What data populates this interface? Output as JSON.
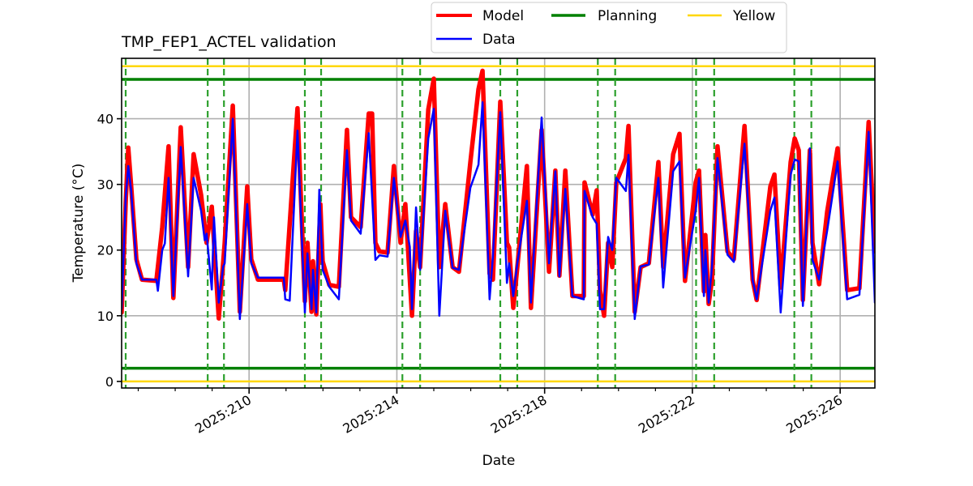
{
  "chart_data": {
    "type": "line",
    "title": "TMP_FEP1_ACTEL validation",
    "xlabel": "Date",
    "ylabel": "Temperature ($^\\circ$C)",
    "ylabel_display": "Temperature (°C)",
    "xlim": [
      206.55,
      226.94
    ],
    "ylim": [
      -1.0,
      49.2
    ],
    "grid": true,
    "legend_placement": "top-center (above plot)",
    "x_ticks": [
      {
        "value": 210,
        "label": "2025:210"
      },
      {
        "value": 214,
        "label": "2025:214"
      },
      {
        "value": 218,
        "label": "2025:218"
      },
      {
        "value": 222,
        "label": "2025:222"
      },
      {
        "value": 226,
        "label": "2025:226"
      }
    ],
    "x_minor_step": 1,
    "y_ticks": [
      {
        "value": 0,
        "label": "0"
      },
      {
        "value": 10,
        "label": "10"
      },
      {
        "value": 20,
        "label": "20"
      },
      {
        "value": 30,
        "label": "30"
      },
      {
        "value": 40,
        "label": "40"
      }
    ],
    "legend": [
      {
        "name": "Model",
        "color": "#ff0000"
      },
      {
        "name": "Data",
        "color": "#0000ff"
      },
      {
        "name": "Planning",
        "color": "#008000"
      },
      {
        "name": "Yellow",
        "color": "#ffd700"
      }
    ],
    "limits": {
      "planning": {
        "color": "#008000",
        "values": [
          46,
          2
        ]
      },
      "yellow": {
        "color": "#ffd700",
        "values": [
          48,
          0
        ]
      }
    },
    "event_lines": {
      "color": "#2ca02c",
      "style": "dashed",
      "x": [
        206.66,
        208.88,
        209.32,
        211.51,
        211.95,
        214.15,
        214.63,
        216.8,
        217.26,
        219.44,
        219.91,
        222.1,
        222.59,
        224.76,
        225.22
      ]
    },
    "series": [
      {
        "name": "Model",
        "color": "#ff0000",
        "points": [
          [
            206.55,
            10.5
          ],
          [
            206.66,
            27.2
          ],
          [
            206.73,
            35.6
          ],
          [
            206.81,
            29.7
          ],
          [
            206.95,
            18.6
          ],
          [
            207.1,
            15.5
          ],
          [
            207.49,
            15.3
          ],
          [
            207.65,
            23.5
          ],
          [
            207.82,
            35.8
          ],
          [
            207.95,
            12.7
          ],
          [
            208.15,
            38.7
          ],
          [
            208.35,
            17.4
          ],
          [
            208.5,
            34.6
          ],
          [
            208.7,
            28.4
          ],
          [
            208.85,
            21.1
          ],
          [
            208.99,
            26.6
          ],
          [
            209.18,
            9.6
          ],
          [
            209.34,
            21.1
          ],
          [
            209.56,
            42.0
          ],
          [
            209.75,
            10.6
          ],
          [
            209.95,
            29.7
          ],
          [
            210.06,
            18.6
          ],
          [
            210.24,
            15.5
          ],
          [
            210.94,
            15.5
          ],
          [
            210.98,
            13.9
          ],
          [
            211.31,
            41.6
          ],
          [
            211.51,
            12.2
          ],
          [
            211.58,
            21.1
          ],
          [
            211.69,
            10.6
          ],
          [
            211.73,
            18.3
          ],
          [
            211.82,
            10.2
          ],
          [
            211.93,
            27.0
          ],
          [
            211.99,
            18.3
          ],
          [
            212.17,
            14.7
          ],
          [
            212.43,
            14.4
          ],
          [
            212.65,
            38.3
          ],
          [
            212.76,
            25.0
          ],
          [
            213.02,
            23.5
          ],
          [
            213.24,
            40.8
          ],
          [
            213.33,
            40.8
          ],
          [
            213.42,
            21.1
          ],
          [
            213.53,
            19.8
          ],
          [
            213.75,
            19.6
          ],
          [
            213.92,
            32.8
          ],
          [
            214.1,
            21.1
          ],
          [
            214.23,
            27.0
          ],
          [
            214.41,
            10.0
          ],
          [
            214.52,
            22.9
          ],
          [
            214.63,
            17.4
          ],
          [
            214.85,
            41.4
          ],
          [
            215.0,
            46.1
          ],
          [
            215.15,
            17.4
          ],
          [
            215.31,
            27.0
          ],
          [
            215.51,
            17.4
          ],
          [
            215.68,
            16.7
          ],
          [
            215.99,
            33.4
          ],
          [
            216.21,
            44.5
          ],
          [
            216.32,
            47.3
          ],
          [
            216.51,
            16.4
          ],
          [
            216.6,
            15.5
          ],
          [
            216.8,
            42.6
          ],
          [
            216.98,
            21.1
          ],
          [
            217.04,
            20.4
          ],
          [
            217.15,
            11.2
          ],
          [
            217.26,
            17.4
          ],
          [
            217.52,
            32.8
          ],
          [
            217.63,
            11.2
          ],
          [
            217.92,
            38.3
          ],
          [
            218.12,
            16.7
          ],
          [
            218.29,
            32.1
          ],
          [
            218.4,
            16.1
          ],
          [
            218.56,
            32.1
          ],
          [
            218.75,
            13.0
          ],
          [
            219.06,
            13.0
          ],
          [
            219.08,
            30.3
          ],
          [
            219.3,
            25.4
          ],
          [
            219.41,
            29.1
          ],
          [
            219.5,
            13.9
          ],
          [
            219.61,
            10.0
          ],
          [
            219.72,
            21.1
          ],
          [
            219.83,
            17.4
          ],
          [
            219.94,
            30.3
          ],
          [
            220.2,
            34.0
          ],
          [
            220.27,
            38.9
          ],
          [
            220.44,
            10.6
          ],
          [
            220.6,
            17.4
          ],
          [
            220.82,
            18.0
          ],
          [
            221.08,
            33.4
          ],
          [
            221.21,
            17.4
          ],
          [
            221.48,
            34.6
          ],
          [
            221.65,
            37.7
          ],
          [
            221.8,
            15.3
          ],
          [
            222.09,
            30.3
          ],
          [
            222.18,
            32.1
          ],
          [
            222.31,
            13.7
          ],
          [
            222.35,
            22.3
          ],
          [
            222.44,
            11.8
          ],
          [
            222.53,
            15.5
          ],
          [
            222.68,
            35.8
          ],
          [
            222.95,
            19.8
          ],
          [
            223.12,
            18.6
          ],
          [
            223.41,
            38.9
          ],
          [
            223.63,
            15.5
          ],
          [
            223.74,
            12.4
          ],
          [
            224.11,
            29.7
          ],
          [
            224.22,
            31.5
          ],
          [
            224.39,
            14.3
          ],
          [
            224.66,
            33.4
          ],
          [
            224.77,
            37.0
          ],
          [
            224.88,
            35.2
          ],
          [
            224.99,
            12.4
          ],
          [
            225.18,
            35.2
          ],
          [
            225.25,
            21.1
          ],
          [
            225.43,
            14.8
          ],
          [
            225.65,
            25.9
          ],
          [
            225.93,
            35.5
          ],
          [
            226.19,
            13.9
          ],
          [
            226.52,
            14.2
          ],
          [
            226.77,
            39.5
          ],
          [
            226.94,
            19.8
          ]
        ]
      },
      {
        "name": "Data",
        "color": "#0000ff",
        "points": [
          [
            206.55,
            11.0
          ],
          [
            206.66,
            28.0
          ],
          [
            206.73,
            32.8
          ],
          [
            206.81,
            29.0
          ],
          [
            206.95,
            18.0
          ],
          [
            207.1,
            15.5
          ],
          [
            207.49,
            15.5
          ],
          [
            207.53,
            13.8
          ],
          [
            207.65,
            20.0
          ],
          [
            207.72,
            21.0
          ],
          [
            207.82,
            31.0
          ],
          [
            207.95,
            13.0
          ],
          [
            208.15,
            35.7
          ],
          [
            208.35,
            16.0
          ],
          [
            208.5,
            31.0
          ],
          [
            208.7,
            26.0
          ],
          [
            208.8,
            21.5
          ],
          [
            208.85,
            22.5
          ],
          [
            208.99,
            14.0
          ],
          [
            209.05,
            25.0
          ],
          [
            209.18,
            12.0
          ],
          [
            209.3,
            17.5
          ],
          [
            209.34,
            18.0
          ],
          [
            209.56,
            40.0
          ],
          [
            209.75,
            9.5
          ],
          [
            209.95,
            27.0
          ],
          [
            210.06,
            18.0
          ],
          [
            210.24,
            15.8
          ],
          [
            210.94,
            15.8
          ],
          [
            210.98,
            12.5
          ],
          [
            211.1,
            12.3
          ],
          [
            211.31,
            38.2
          ],
          [
            211.51,
            10.5
          ],
          [
            211.58,
            19.5
          ],
          [
            211.69,
            11.0
          ],
          [
            211.73,
            17.0
          ],
          [
            211.82,
            10.5
          ],
          [
            211.9,
            29.2
          ],
          [
            211.99,
            17.0
          ],
          [
            212.17,
            14.4
          ],
          [
            212.43,
            12.5
          ],
          [
            212.65,
            35.2
          ],
          [
            212.76,
            24.5
          ],
          [
            213.02,
            22.5
          ],
          [
            213.24,
            37.8
          ],
          [
            213.42,
            18.5
          ],
          [
            213.53,
            19.2
          ],
          [
            213.75,
            19.0
          ],
          [
            213.92,
            31.0
          ],
          [
            214.1,
            22.0
          ],
          [
            214.23,
            24.5
          ],
          [
            214.35,
            20.5
          ],
          [
            214.41,
            11.0
          ],
          [
            214.52,
            26.5
          ],
          [
            214.63,
            17.0
          ],
          [
            214.85,
            37.0
          ],
          [
            215.0,
            41.5
          ],
          [
            215.15,
            10.0
          ],
          [
            215.31,
            26.0
          ],
          [
            215.51,
            17.3
          ],
          [
            215.68,
            17.0
          ],
          [
            215.99,
            29.5
          ],
          [
            216.21,
            33.0
          ],
          [
            216.32,
            42.5
          ],
          [
            216.51,
            12.5
          ],
          [
            216.6,
            19.0
          ],
          [
            216.8,
            41.0
          ],
          [
            216.98,
            15.0
          ],
          [
            217.04,
            18.0
          ],
          [
            217.15,
            13.0
          ],
          [
            217.26,
            18.0
          ],
          [
            217.52,
            27.5
          ],
          [
            217.63,
            12.0
          ],
          [
            217.92,
            40.2
          ],
          [
            218.12,
            18.0
          ],
          [
            218.29,
            32.0
          ],
          [
            218.4,
            16.0
          ],
          [
            218.56,
            29.3
          ],
          [
            218.75,
            13.0
          ],
          [
            219.06,
            12.5
          ],
          [
            219.08,
            29.0
          ],
          [
            219.3,
            25.0
          ],
          [
            219.41,
            24.0
          ],
          [
            219.5,
            11.0
          ],
          [
            219.61,
            11.0
          ],
          [
            219.72,
            22.0
          ],
          [
            219.83,
            20.0
          ],
          [
            219.94,
            31.0
          ],
          [
            220.2,
            29.0
          ],
          [
            220.27,
            34.5
          ],
          [
            220.44,
            9.5
          ],
          [
            220.6,
            17.5
          ],
          [
            220.82,
            17.8
          ],
          [
            221.08,
            31.0
          ],
          [
            221.21,
            14.3
          ],
          [
            221.48,
            32.0
          ],
          [
            221.65,
            33.5
          ],
          [
            221.8,
            15.8
          ],
          [
            222.09,
            26.0
          ],
          [
            222.18,
            31.0
          ],
          [
            222.31,
            13.0
          ],
          [
            222.35,
            20.0
          ],
          [
            222.44,
            12.0
          ],
          [
            222.53,
            17.5
          ],
          [
            222.68,
            34.0
          ],
          [
            222.95,
            19.3
          ],
          [
            223.12,
            18.2
          ],
          [
            223.41,
            36.2
          ],
          [
            223.63,
            15.5
          ],
          [
            223.74,
            12.5
          ],
          [
            224.11,
            26.0
          ],
          [
            224.22,
            28.0
          ],
          [
            224.39,
            10.5
          ],
          [
            224.66,
            31.5
          ],
          [
            224.77,
            33.8
          ],
          [
            224.88,
            33.5
          ],
          [
            224.99,
            11.5
          ],
          [
            225.18,
            35.5
          ],
          [
            225.25,
            18.5
          ],
          [
            225.43,
            15.5
          ],
          [
            225.65,
            23.0
          ],
          [
            225.93,
            33.5
          ],
          [
            226.19,
            12.5
          ],
          [
            226.52,
            13.2
          ],
          [
            226.77,
            38.0
          ],
          [
            226.94,
            12.0
          ]
        ]
      }
    ]
  }
}
